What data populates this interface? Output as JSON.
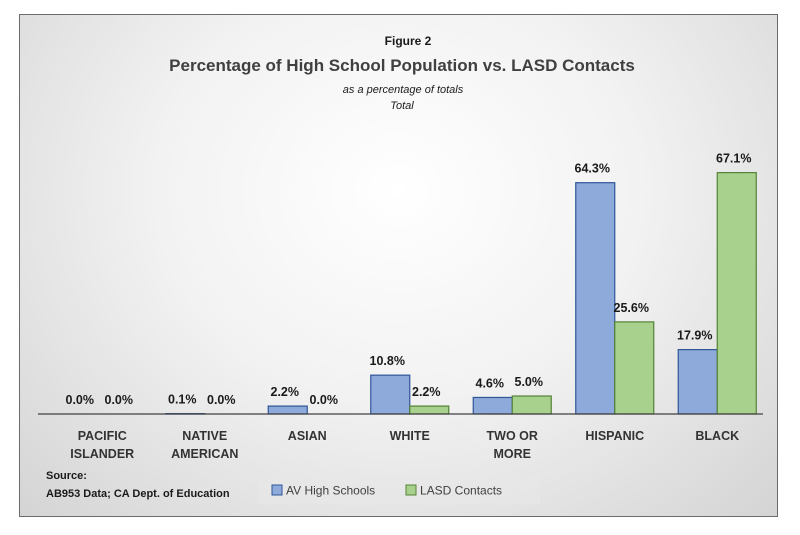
{
  "figure_label": "Figure 2",
  "source": {
    "heading": "Source:",
    "text": "AB953 Data; CA Dept. of Education"
  },
  "colors": {
    "series1": "#8eaadb",
    "series1_stroke": "#2f5597",
    "series2": "#a9d18e",
    "series2_stroke": "#548235",
    "axis": "#404040"
  },
  "chart_data": {
    "type": "bar",
    "title": "Percentage of High School Population vs. LASD Contacts",
    "subtitle": [
      "as a percentage of totals",
      "Total"
    ],
    "categories": [
      [
        "PACIFIC",
        "ISLANDER"
      ],
      [
        "NATIVE",
        "AMERICAN"
      ],
      [
        "ASIAN"
      ],
      [
        "WHITE"
      ],
      [
        "TWO OR",
        "MORE"
      ],
      [
        "HISPANIC"
      ],
      [
        "BLACK"
      ]
    ],
    "series": [
      {
        "name": "AV High Schools",
        "values": [
          0.0,
          0.1,
          2.2,
          10.8,
          4.6,
          64.3,
          17.9
        ]
      },
      {
        "name": "LASD Contacts",
        "values": [
          0.0,
          0.0,
          0.0,
          2.2,
          5.0,
          25.6,
          67.1
        ]
      }
    ],
    "value_format": "percent_1dp",
    "ylim": [
      0,
      72
    ],
    "xlabel": "",
    "ylabel": "",
    "grid": false,
    "legend_position": "bottom"
  }
}
